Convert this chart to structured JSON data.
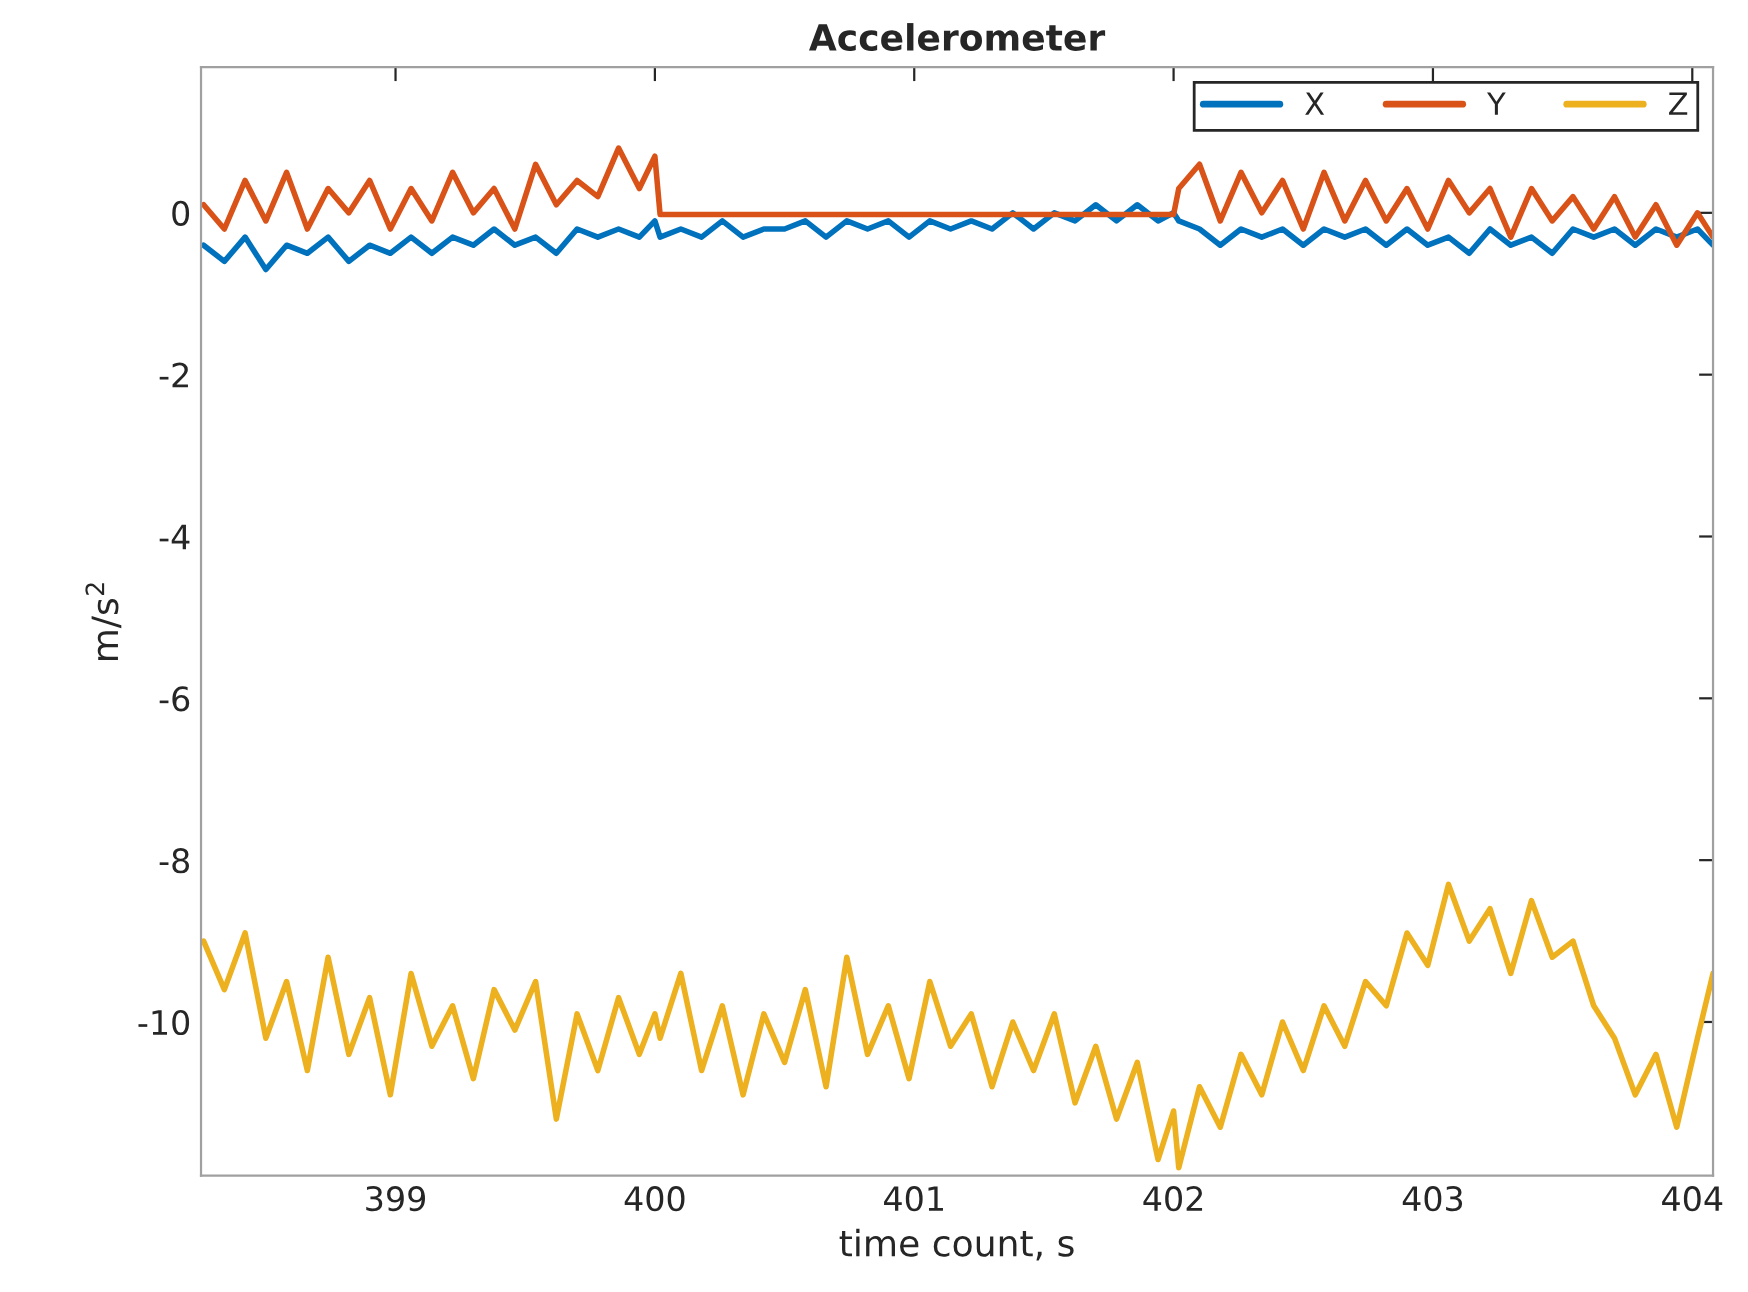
{
  "chart_data": {
    "type": "line",
    "title": "Accelerometer",
    "xlabel": "time count, s",
    "ylabel": "m/s$^{2}$",
    "x": [
      398.26,
      398.34,
      398.42,
      398.5,
      398.58,
      398.66,
      398.74,
      398.82,
      398.9,
      398.98,
      399.06,
      399.14,
      399.22,
      399.3,
      399.38,
      399.46,
      399.54,
      399.62,
      399.7,
      399.78,
      399.86,
      399.94,
      400.0,
      400.02,
      400.1,
      400.18,
      400.26,
      400.34,
      400.42,
      400.5,
      400.58,
      400.66,
      400.74,
      400.82,
      400.9,
      400.98,
      401.06,
      401.14,
      401.22,
      401.3,
      401.38,
      401.46,
      401.54,
      401.62,
      401.7,
      401.78,
      401.86,
      401.94,
      402.0,
      402.02,
      402.1,
      402.18,
      402.26,
      402.34,
      402.42,
      402.5,
      402.58,
      402.66,
      402.74,
      402.82,
      402.9,
      402.98,
      403.06,
      403.14,
      403.22,
      403.3,
      403.38,
      403.46,
      403.54,
      403.62,
      403.7,
      403.78,
      403.86,
      403.94,
      404.02,
      404.08
    ],
    "series": [
      {
        "name": "X",
        "color": "#0072bd",
        "values": [
          -0.4,
          -0.6,
          -0.3,
          -0.7,
          -0.4,
          -0.5,
          -0.3,
          -0.6,
          -0.4,
          -0.5,
          -0.3,
          -0.5,
          -0.3,
          -0.4,
          -0.2,
          -0.4,
          -0.3,
          -0.5,
          -0.2,
          -0.3,
          -0.2,
          -0.3,
          -0.1,
          -0.3,
          -0.2,
          -0.3,
          -0.1,
          -0.3,
          -0.2,
          -0.2,
          -0.1,
          -0.3,
          -0.1,
          -0.2,
          -0.1,
          -0.3,
          -0.1,
          -0.2,
          -0.1,
          -0.2,
          0.0,
          -0.2,
          0.0,
          -0.1,
          0.1,
          -0.1,
          0.1,
          -0.1,
          0.0,
          -0.1,
          -0.2,
          -0.4,
          -0.2,
          -0.3,
          -0.2,
          -0.4,
          -0.2,
          -0.3,
          -0.2,
          -0.4,
          -0.2,
          -0.4,
          -0.3,
          -0.5,
          -0.2,
          -0.4,
          -0.3,
          -0.5,
          -0.2,
          -0.3,
          -0.2,
          -0.4,
          -0.2,
          -0.3,
          -0.2,
          -0.4
        ]
      },
      {
        "name": "Y",
        "color": "#d95319",
        "values": [
          0.1,
          -0.2,
          0.4,
          -0.1,
          0.5,
          -0.2,
          0.3,
          0.0,
          0.4,
          -0.2,
          0.3,
          -0.1,
          0.5,
          0.0,
          0.3,
          -0.2,
          0.6,
          0.1,
          0.4,
          0.2,
          0.8,
          0.3,
          0.7,
          -0.02,
          -0.02,
          -0.02,
          -0.02,
          -0.02,
          -0.02,
          -0.02,
          -0.02,
          -0.02,
          -0.02,
          -0.02,
          -0.02,
          -0.02,
          -0.02,
          -0.02,
          -0.02,
          -0.02,
          -0.02,
          -0.02,
          -0.02,
          -0.02,
          -0.02,
          -0.02,
          -0.02,
          -0.02,
          -0.02,
          0.3,
          0.6,
          -0.1,
          0.5,
          0.0,
          0.4,
          -0.2,
          0.5,
          -0.1,
          0.4,
          -0.1,
          0.3,
          -0.2,
          0.4,
          0.0,
          0.3,
          -0.3,
          0.3,
          -0.1,
          0.2,
          -0.2,
          0.2,
          -0.3,
          0.1,
          -0.4,
          0.0,
          -0.3
        ]
      },
      {
        "name": "Z",
        "color": "#edb120",
        "values": [
          -9.0,
          -9.6,
          -8.9,
          -10.2,
          -9.5,
          -10.6,
          -9.2,
          -10.4,
          -9.7,
          -10.9,
          -9.4,
          -10.3,
          -9.8,
          -10.7,
          -9.6,
          -10.1,
          -9.5,
          -11.2,
          -9.9,
          -10.6,
          -9.7,
          -10.4,
          -9.9,
          -10.2,
          -9.4,
          -10.6,
          -9.8,
          -10.9,
          -9.9,
          -10.5,
          -9.6,
          -10.8,
          -9.2,
          -10.4,
          -9.8,
          -10.7,
          -9.5,
          -10.3,
          -9.9,
          -10.8,
          -10.0,
          -10.6,
          -9.9,
          -11.0,
          -10.3,
          -11.2,
          -10.5,
          -11.7,
          -11.1,
          -11.8,
          -10.8,
          -11.3,
          -10.4,
          -10.9,
          -10.0,
          -10.6,
          -9.8,
          -10.3,
          -9.5,
          -9.8,
          -8.9,
          -9.3,
          -8.3,
          -9.0,
          -8.6,
          -9.4,
          -8.5,
          -9.2,
          -9.0,
          -9.8,
          -10.2,
          -10.9,
          -10.4,
          -11.3,
          -10.2,
          -9.4
        ]
      }
    ],
    "xlim": [
      398.25,
      404.08
    ],
    "ylim": [
      -11.9,
      1.8
    ],
    "xticks": [
      399,
      400,
      401,
      402,
      403,
      404
    ],
    "yticks": [
      -10,
      -8,
      -6,
      -4,
      -2,
      0
    ],
    "legend": "top right",
    "grid": false
  }
}
